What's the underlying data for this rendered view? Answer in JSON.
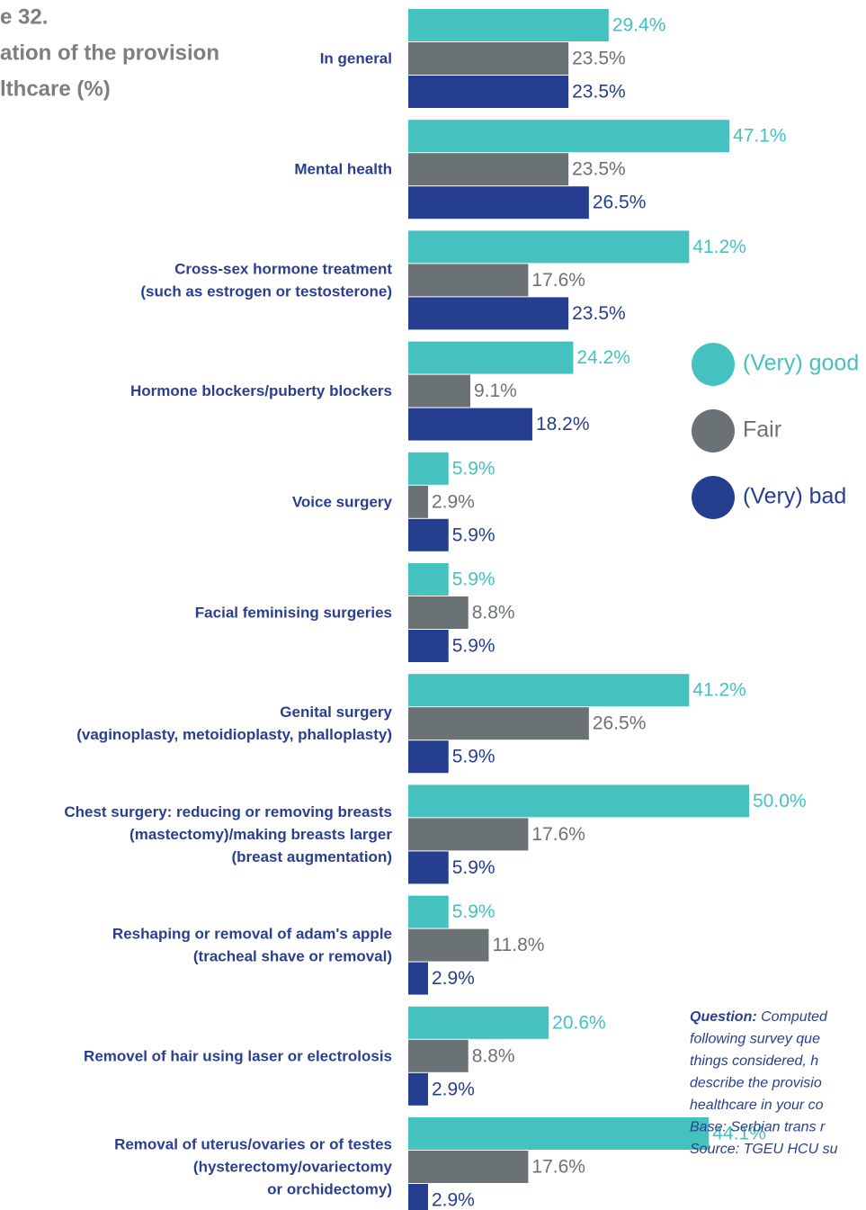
{
  "chart_data": {
    "type": "bar",
    "orientation": "horizontal",
    "title": [
      "e 32.",
      "ation of the provision",
      "lthcare (%)"
    ],
    "categories": [
      [
        "In general"
      ],
      [
        "Mental health"
      ],
      [
        "Cross-sex hormone treatment",
        "(such as estrogen or testosterone)"
      ],
      [
        "Hormone blockers/puberty blockers"
      ],
      [
        "Voice surgery"
      ],
      [
        "Facial feminising surgeries"
      ],
      [
        "Genital surgery",
        "(vaginoplasty, metoidioplasty, phalloplasty)"
      ],
      [
        "Chest surgery: reducing or removing breasts",
        "(mastectomy)/making breasts larger",
        "(breast augmentation)"
      ],
      [
        "Reshaping or removal of adam's apple",
        "(tracheal shave or removal)"
      ],
      [
        "Removel of hair using laser or electrolosis"
      ],
      [
        "Removal of uterus/ovaries or of testes",
        "(hysterectomy/ovariectomy",
        "or orchidectomy)"
      ]
    ],
    "series": [
      {
        "name": "(Very) good",
        "color": "#45c1c0",
        "values": [
          29.4,
          47.1,
          41.2,
          24.2,
          5.9,
          5.9,
          41.2,
          50.0,
          5.9,
          20.6,
          44.1
        ],
        "value_labels": [
          "29.4%",
          "47.1%",
          "41.2%",
          "24.2%",
          "5.9%",
          "5.9%",
          "41.2%",
          "50.0%",
          "5.9%",
          "20.6%",
          "44.1%"
        ]
      },
      {
        "name": "Fair",
        "color": "#6b7275",
        "values": [
          23.5,
          23.5,
          17.6,
          9.1,
          2.9,
          8.8,
          26.5,
          17.6,
          11.8,
          8.8,
          17.6
        ],
        "value_labels": [
          "23.5%",
          "23.5%",
          "17.6%",
          "9.1%",
          "2.9%",
          "8.8%",
          "26.5%",
          "17.6%",
          "11.8%",
          "8.8%",
          "17.6%"
        ]
      },
      {
        "name": "(Very) bad",
        "color": "#253e8f",
        "values": [
          23.5,
          26.5,
          23.5,
          18.2,
          5.9,
          5.9,
          5.9,
          5.9,
          2.9,
          2.9,
          2.9
        ],
        "value_labels": [
          "23.5%",
          "26.5%",
          "23.5%",
          "18.2%",
          "5.9%",
          "5.9%",
          "5.9%",
          "5.9%",
          "2.9%",
          "2.9%",
          "2.9%"
        ]
      }
    ],
    "note": [
      {
        "bold": "Question:",
        "text": " Computed"
      },
      {
        "text": "following survey que"
      },
      {
        "text": "things considered, h"
      },
      {
        "text": "describe the provisio"
      },
      {
        "text": "healthcare in your co"
      },
      {
        "text": "Base: Serbian trans r"
      },
      {
        "text": "Source: TGEU HCU su"
      }
    ]
  }
}
